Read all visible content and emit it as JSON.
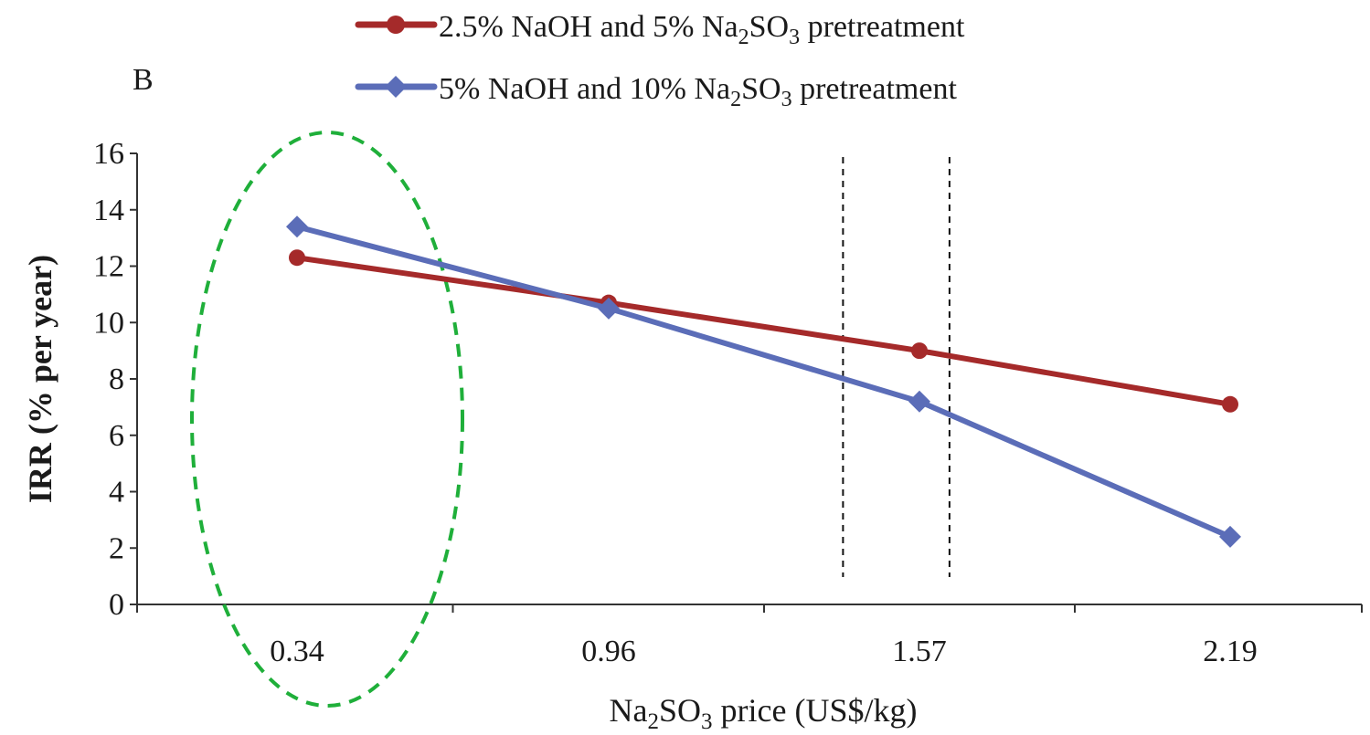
{
  "chart_data": {
    "type": "line",
    "panel_label": "B",
    "title": "",
    "xlabel": {
      "prefix": "Na",
      "sub1": "2",
      "mid": "SO",
      "sub2": "3",
      "suffix": " price (US$/kg)"
    },
    "ylabel": "IRR (% per year)",
    "categories": [
      "0.34",
      "0.96",
      "1.57",
      "2.19"
    ],
    "ylim": [
      0,
      16
    ],
    "yticks": [
      0,
      2,
      4,
      6,
      8,
      10,
      12,
      14,
      16
    ],
    "grid": false,
    "legend_position": "top",
    "series": [
      {
        "name": {
          "prefix": "2.5% NaOH and 5% Na",
          "sub1": "2",
          "mid": "SO",
          "sub2": "3",
          "suffix": " pretreatment"
        },
        "marker": "circle",
        "color": "#A52A2A",
        "values": [
          12.3,
          10.7,
          9.0,
          7.1
        ]
      },
      {
        "name": {
          "prefix": "5% NaOH and 10% Na",
          "sub1": "2",
          "mid": "SO",
          "sub2": "3",
          "suffix": " pretreatment"
        },
        "marker": "diamond",
        "color": "#5B6DB8",
        "values": [
          13.4,
          10.5,
          7.2,
          2.4
        ]
      }
    ],
    "annotations": {
      "dashed_vlines_x": [
        1.42,
        1.63
      ],
      "ellipse_highlight_category": "0.34",
      "ellipse_color": "#1FAF3A",
      "axis_color": "#333333"
    }
  }
}
